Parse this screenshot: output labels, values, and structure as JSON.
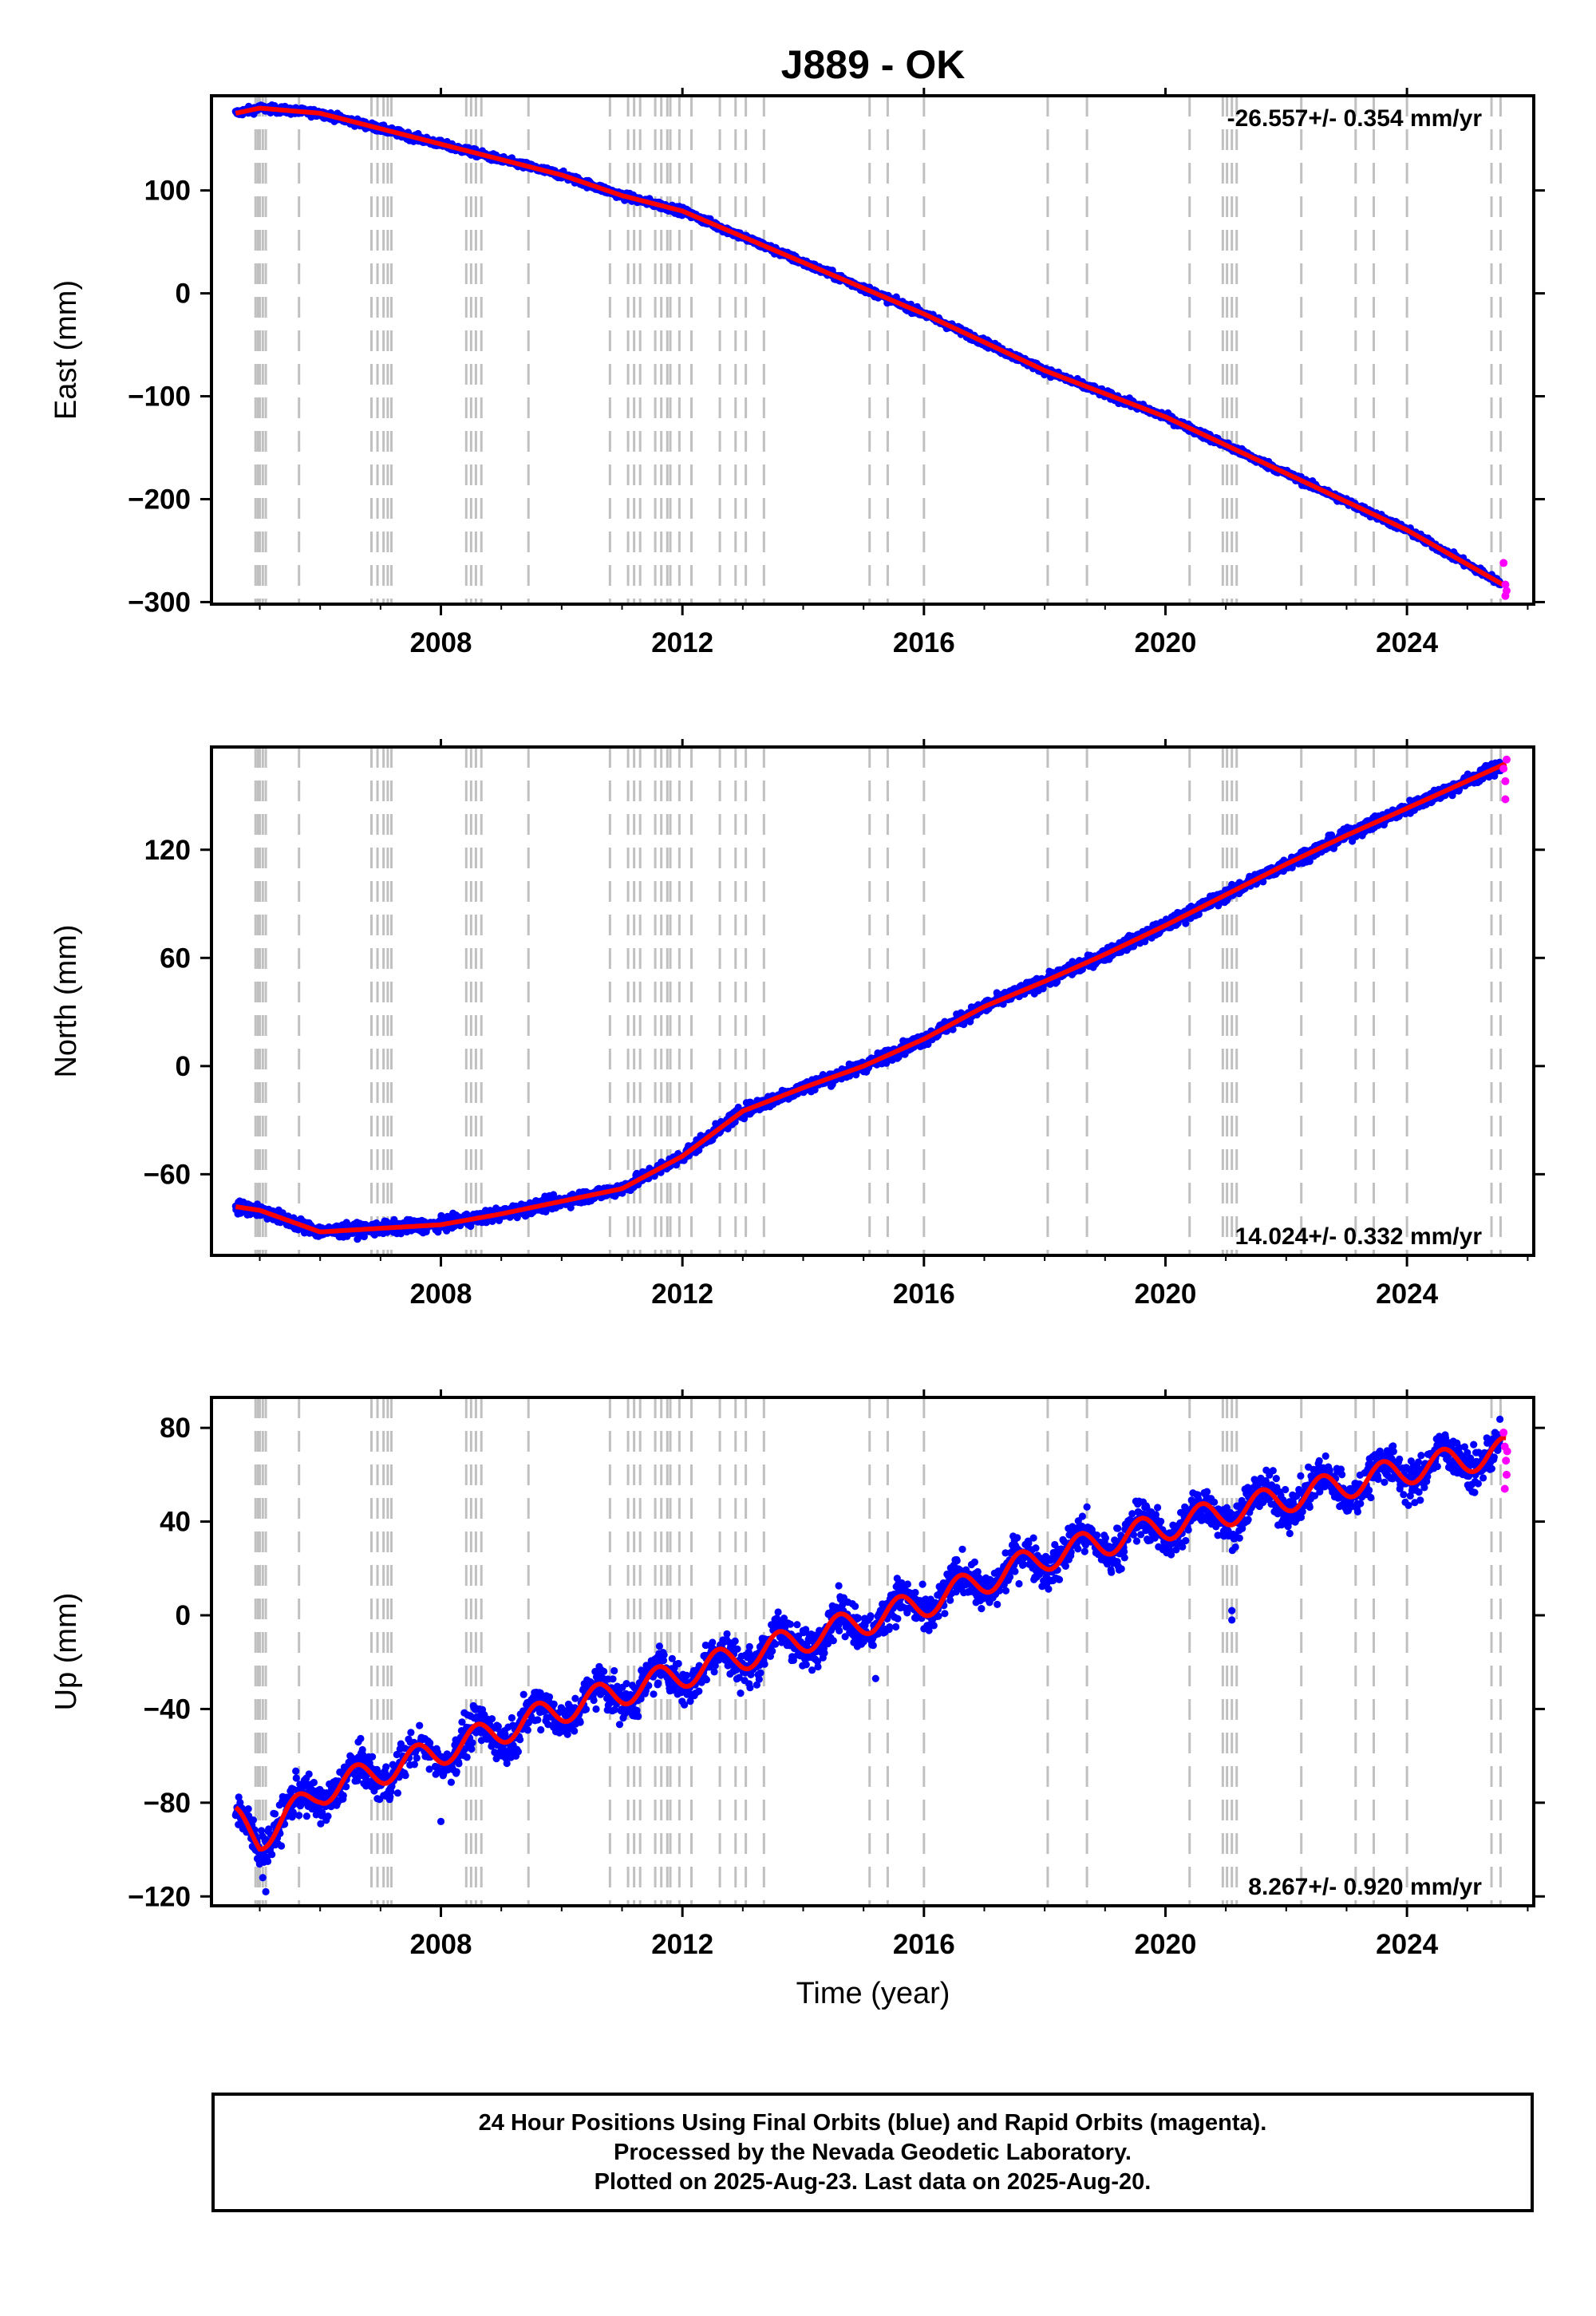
{
  "title": "J889 - OK",
  "xlabel": "Time (year)",
  "caption": [
    "24 Hour Positions Using Final Orbits (blue) and Rapid Orbits (magenta).",
    "Processed by the Nevada Geodetic Laboratory.",
    "Plotted on 2025-Aug-23. Last data on 2025-Aug-20."
  ],
  "colors": {
    "final": "#0000ff",
    "rapid": "#ff00ff",
    "model": "#ff0000",
    "steps": "#c0c0c0"
  },
  "step_years": [
    2004.93,
    2004.97,
    2005.0,
    2005.05,
    2005.1,
    2005.65,
    2006.85,
    2006.95,
    2007.05,
    2007.12,
    2007.18,
    2008.42,
    2008.5,
    2008.58,
    2008.67,
    2009.45,
    2010.8,
    2011.1,
    2011.2,
    2011.3,
    2011.55,
    2011.65,
    2011.75,
    2011.8,
    2011.95,
    2012.15,
    2012.62,
    2012.88,
    2013.05,
    2013.35,
    2015.1,
    2015.4,
    2016.0,
    2018.05,
    2018.7,
    2020.4,
    2020.95,
    2021.02,
    2021.1,
    2021.18,
    2022.25,
    2023.15,
    2023.45,
    2024.0,
    2025.4,
    2025.55
  ],
  "chart_data": [
    {
      "type": "scatter",
      "ylabel": "East (mm)",
      "annotation": "-26.557+/- 0.354 mm/yr",
      "annotation_position": "top-right",
      "xlim": [
        2004.2,
        2026.1
      ],
      "ylim": [
        -302,
        192
      ],
      "x_ticks": [
        2008,
        2012,
        2016,
        2020,
        2024
      ],
      "y_ticks": [
        100,
        0,
        -100,
        -200,
        -300
      ],
      "y_tick_labels": [
        "100",
        "0",
        "−100",
        "−200",
        "−300"
      ],
      "trend": [
        [
          2004.6,
          175
        ],
        [
          2005.0,
          180
        ],
        [
          2006.0,
          175
        ],
        [
          2008.0,
          145
        ],
        [
          2010.0,
          115
        ],
        [
          2011.0,
          95
        ],
        [
          2011.4,
          89
        ],
        [
          2012.0,
          80
        ],
        [
          2014.0,
          30
        ],
        [
          2016.0,
          -20
        ],
        [
          2018.0,
          -75
        ],
        [
          2020.0,
          -120
        ],
        [
          2022.0,
          -175
        ],
        [
          2024.0,
          -230
        ],
        [
          2025.65,
          -285
        ]
      ],
      "noise_mm": 2.5,
      "rapid": [
        [
          2025.6,
          -262
        ],
        [
          2025.63,
          -283
        ],
        [
          2025.65,
          -289
        ],
        [
          2025.63,
          -294
        ]
      ]
    },
    {
      "type": "scatter",
      "ylabel": "North (mm)",
      "annotation": "14.024+/- 0.332 mm/yr",
      "annotation_position": "bottom-right",
      "xlim": [
        2004.2,
        2026.1
      ],
      "ylim": [
        -105,
        177
      ],
      "x_ticks": [
        2008,
        2012,
        2016,
        2020,
        2024
      ],
      "y_ticks": [
        120,
        60,
        0,
        -60
      ],
      "y_tick_labels": [
        "120",
        "60",
        "0",
        "−60"
      ],
      "trend": [
        [
          2004.6,
          -78
        ],
        [
          2005.0,
          -80
        ],
        [
          2006.0,
          -92
        ],
        [
          2007.0,
          -90
        ],
        [
          2008.0,
          -88
        ],
        [
          2009.0,
          -82
        ],
        [
          2010.0,
          -75
        ],
        [
          2011.0,
          -68
        ],
        [
          2012.0,
          -50
        ],
        [
          2013.0,
          -25
        ],
        [
          2014.0,
          -12
        ],
        [
          2015.0,
          0
        ],
        [
          2016.0,
          15
        ],
        [
          2017.0,
          33
        ],
        [
          2018.0,
          47
        ],
        [
          2019.0,
          62
        ],
        [
          2020.0,
          78
        ],
        [
          2021.0,
          95
        ],
        [
          2022.0,
          112
        ],
        [
          2023.0,
          128
        ],
        [
          2024.0,
          143
        ],
        [
          2025.65,
          168
        ]
      ],
      "noise_mm": 2.5,
      "rapid": [
        [
          2025.6,
          165
        ],
        [
          2025.63,
          158
        ],
        [
          2025.65,
          170
        ],
        [
          2025.63,
          148
        ]
      ]
    },
    {
      "type": "scatter",
      "ylabel": "Up (mm)",
      "annotation": "8.267+/- 0.920 mm/yr",
      "annotation_position": "bottom-right",
      "xlim": [
        2004.2,
        2026.1
      ],
      "ylim": [
        -124,
        93
      ],
      "x_ticks": [
        2008,
        2012,
        2016,
        2020,
        2024
      ],
      "y_ticks": [
        80,
        40,
        0,
        -40,
        -80,
        -120
      ],
      "y_tick_labels": [
        "80",
        "40",
        "0",
        "−40",
        "−80",
        "−120"
      ],
      "trend": [
        [
          2004.6,
          -88
        ],
        [
          2005.0,
          -95
        ],
        [
          2005.5,
          -85
        ],
        [
          2006.0,
          -75
        ],
        [
          2008.0,
          -58
        ],
        [
          2010.0,
          -40
        ],
        [
          2012.0,
          -25
        ],
        [
          2014.0,
          -10
        ],
        [
          2016.0,
          5
        ],
        [
          2018.0,
          25
        ],
        [
          2020.0,
          38
        ],
        [
          2022.0,
          50
        ],
        [
          2024.0,
          62
        ],
        [
          2025.65,
          70
        ]
      ],
      "noise_mm": 6,
      "seasonal_mm": 6,
      "rapid": [
        [
          2025.6,
          78
        ],
        [
          2025.62,
          72
        ],
        [
          2025.64,
          66
        ],
        [
          2025.65,
          60
        ],
        [
          2025.62,
          54
        ],
        [
          2025.66,
          70
        ]
      ]
    }
  ]
}
